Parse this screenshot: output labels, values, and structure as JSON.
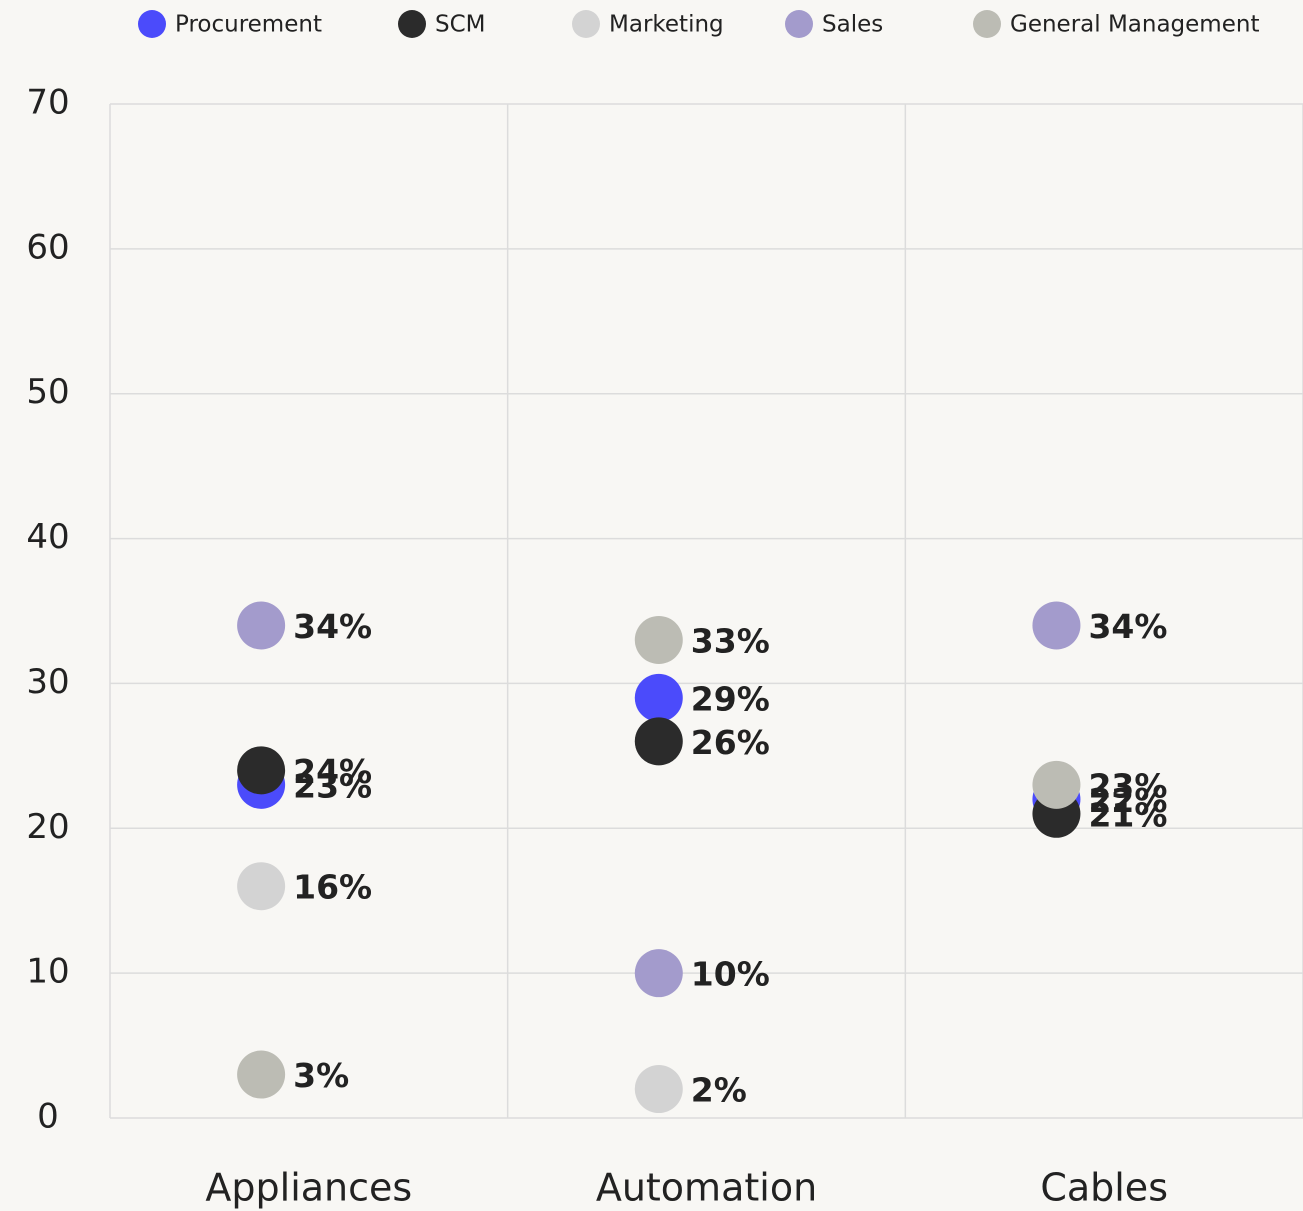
{
  "chart_data": {
    "type": "dot",
    "categories": [
      "Appliances",
      "Automation",
      "Cables"
    ],
    "series": [
      {
        "name": "Procurement",
        "color": "#4b4bfb",
        "values": [
          23,
          29,
          22
        ],
        "value_labels": [
          "23%",
          "29%",
          "22%"
        ]
      },
      {
        "name": "SCM",
        "color": "#2b2b2b",
        "values": [
          24,
          26,
          21
        ],
        "value_labels": [
          "24%",
          "26%",
          "21%"
        ]
      },
      {
        "name": "Marketing",
        "color": "#d3d3d3",
        "values": [
          16,
          2,
          null
        ],
        "value_labels": [
          "16%",
          "2%",
          null
        ]
      },
      {
        "name": "Sales",
        "color": "#a39bcc",
        "values": [
          34,
          10,
          34
        ],
        "value_labels": [
          "34%",
          "10%",
          "34%"
        ]
      },
      {
        "name": "General Management",
        "color": "#bcbcb4",
        "values": [
          3,
          33,
          23
        ],
        "value_labels": [
          "3%",
          "33%",
          "23%"
        ]
      }
    ],
    "ylim": [
      0,
      70
    ],
    "yticks": [
      0,
      10,
      20,
      30,
      40,
      50,
      60,
      70
    ],
    "grid": true,
    "legend": "top"
  }
}
